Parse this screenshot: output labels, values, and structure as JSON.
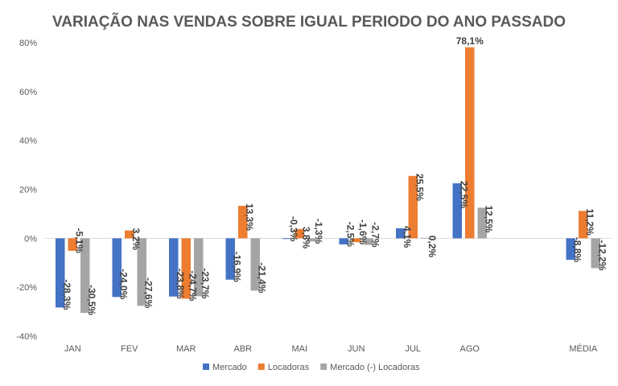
{
  "chart_data": {
    "type": "bar",
    "title": "VARIAÇÃO NAS VENDAS SOBRE IGUAL PERIODO DO ANO PASSADO",
    "xlabel": "",
    "ylabel": "",
    "ylim": [
      -40,
      80
    ],
    "yticks": [
      -40,
      -20,
      0,
      20,
      40,
      60,
      80
    ],
    "ytick_labels": [
      "-40%",
      "-20%",
      "0%",
      "20%",
      "40%",
      "60%",
      "80%"
    ],
    "grid": false,
    "legend_position": "bottom",
    "categories": [
      "JAN",
      "FEV",
      "MAR",
      "ABR",
      "MAI",
      "JUN",
      "JUL",
      "AGO",
      "",
      "MÉDIA"
    ],
    "series": [
      {
        "name": "Mercado",
        "color": "#4472C4",
        "values": [
          -28.3,
          -24.0,
          -23.8,
          -16.9,
          -0.3,
          -2.5,
          4.1,
          22.5,
          null,
          -8.8
        ],
        "labels": [
          "-28,3%",
          "-24,0%",
          "-23,8%",
          "-16,9%",
          "-0,3%",
          "-2,5%",
          "4,1%",
          "22,5%",
          null,
          "-8,8%"
        ]
      },
      {
        "name": "Locadoras",
        "color": "#ED7D31",
        "values": [
          -5.1,
          3.2,
          -24.7,
          13.3,
          3.8,
          -1.6,
          25.5,
          78.1,
          null,
          11.2
        ],
        "labels": [
          "-5,1%",
          "3,2%",
          "-24,7%",
          "13,3%",
          "3,8%",
          "-1,6%",
          "25,5%",
          "78,1%",
          null,
          "11,2%"
        ]
      },
      {
        "name": "Mercado (-) Locadoras",
        "color": "#A5A5A5",
        "values": [
          -30.5,
          -27.6,
          -23.7,
          -21.4,
          -1.3,
          -2.7,
          0.2,
          12.5,
          null,
          -12.2
        ],
        "labels": [
          "-30,5%",
          "-27,6%",
          "-23,7%",
          "-21,4%",
          "-1,3%",
          "-2,7%",
          "0,2%",
          "12,5%",
          null,
          "-12,2%"
        ]
      }
    ]
  }
}
